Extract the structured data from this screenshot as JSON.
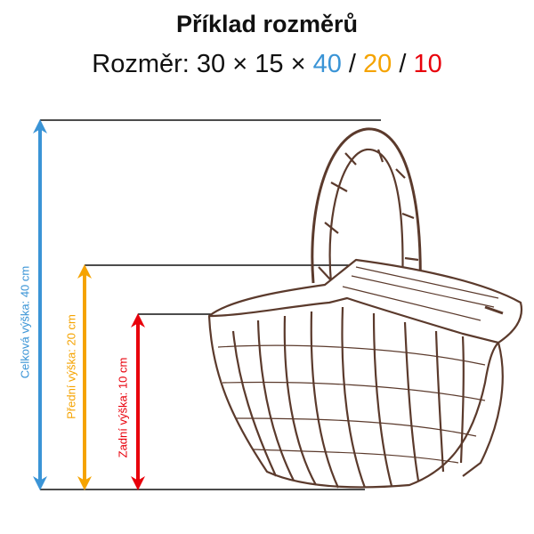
{
  "title": "Příklad rozměrů",
  "dimensions": {
    "prefix": "Rozměr: ",
    "length": "30",
    "sep1": " × ",
    "width": "15",
    "sep2": " × ",
    "total_height": "40",
    "slash1": " / ",
    "front_height": "20",
    "slash2": " / ",
    "back_height": "10"
  },
  "labels": {
    "total": "Celková výška: 40 cm",
    "front": "Přední výška: 20 cm",
    "back": "Zadní výška: 10 cm"
  },
  "colors": {
    "total": "#3a94d6",
    "front": "#f5a300",
    "back": "#e8000b",
    "basket": "#5b3a2c"
  }
}
